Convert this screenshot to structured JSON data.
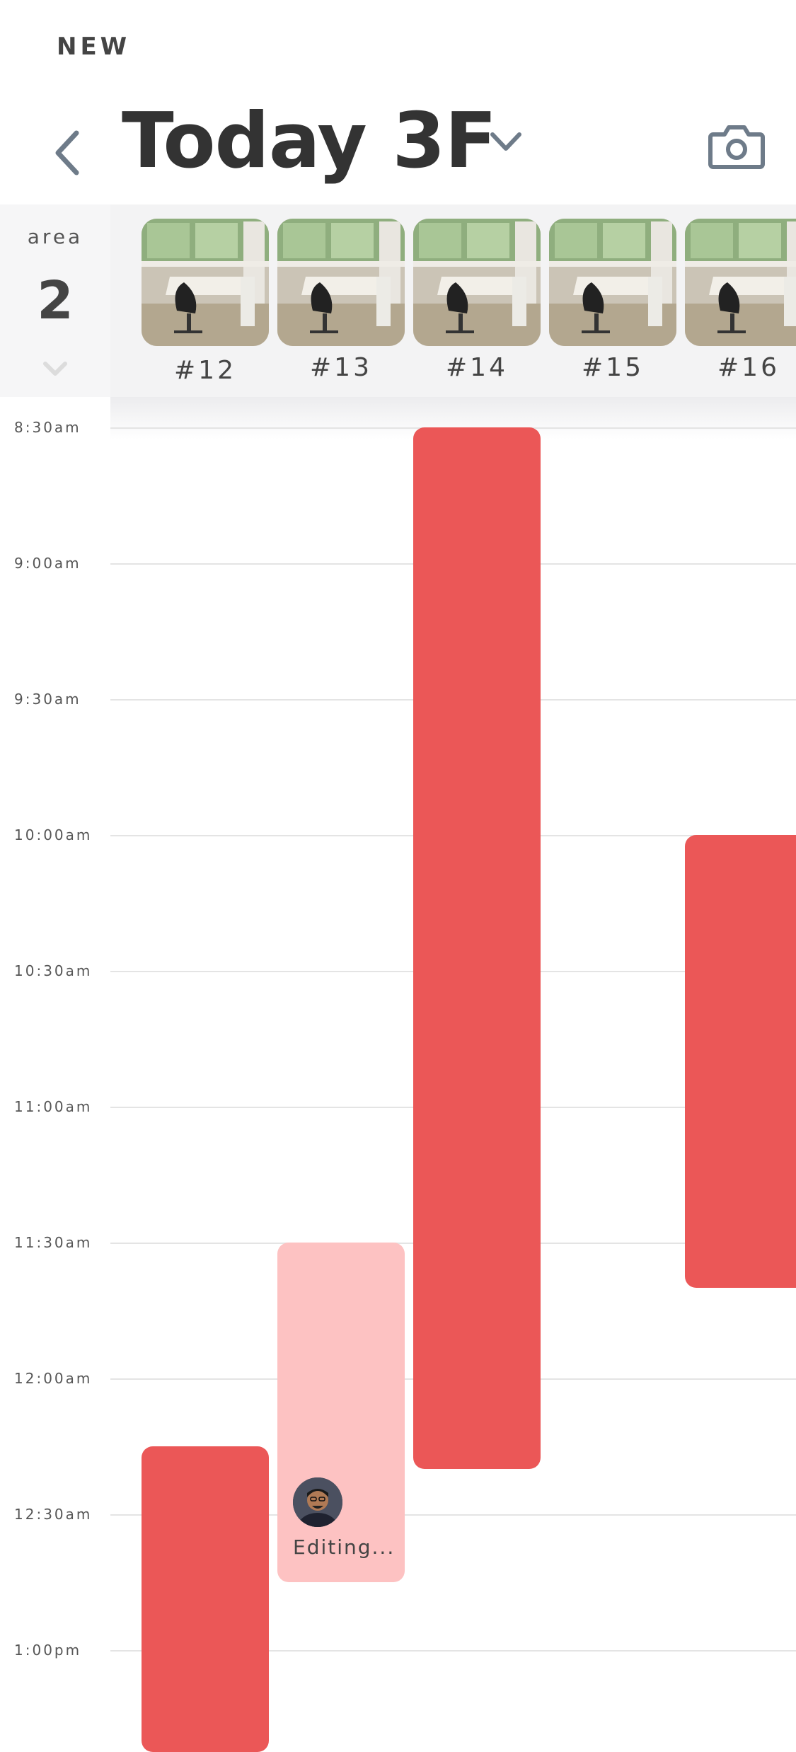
{
  "header": {
    "new_label": "NEW",
    "title": "Today 3F"
  },
  "area": {
    "label": "area",
    "number": "2"
  },
  "desks": [
    {
      "label": "#12"
    },
    {
      "label": "#13"
    },
    {
      "label": "#14"
    },
    {
      "label": "#15"
    },
    {
      "label": "#16"
    }
  ],
  "time_slots": [
    "8:30am",
    "9:00am",
    "9:30am",
    "10:00am",
    "10:30am",
    "11:00am",
    "11:30am",
    "12:00am",
    "12:30am",
    "1:00pm"
  ],
  "bookings": [
    {
      "desk": "#12",
      "start": "12:15pm",
      "status": "booked"
    },
    {
      "desk": "#13",
      "start": "11:30am",
      "end": "12:45pm",
      "status": "editing",
      "status_text": "Editing..."
    },
    {
      "desk": "#14",
      "start": "8:30am",
      "end": "12:20pm",
      "status": "booked"
    },
    {
      "desk": "#16",
      "start": "10:00am",
      "end": "11:40am",
      "status": "booked"
    }
  ],
  "colors": {
    "booked": "#eb5757",
    "editing": "#fdc2c2",
    "icon": "#6e7b89"
  },
  "icons": {
    "back": "chevron-left-icon",
    "dropdown": "chevron-down-icon",
    "camera": "camera-icon",
    "area_toggle": "chevron-down-icon"
  }
}
